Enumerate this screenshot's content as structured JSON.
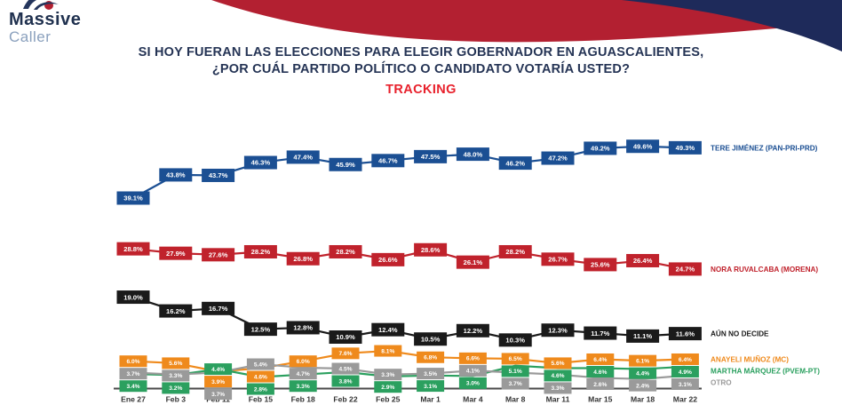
{
  "header": {
    "logo_line1": "Massive",
    "logo_line2": "Caller",
    "title_line1": "SI HOY FUERAN LAS ELECCIONES PARA ELEGIR GOBERNADOR EN AGUASCALIENTES,",
    "title_line2": "¿POR CUÁL PARTIDO POLÍTICO O CANDIDATO VOTARÍA USTED?",
    "tracking_label": "TRACKING"
  },
  "colors": {
    "swoosh_red": "#b32031",
    "swoosh_blue": "#1e2a5a",
    "title_navy": "#253455",
    "tracking_red": "#e8212c",
    "axis": "#4a4a4a"
  },
  "chart_data": {
    "type": "line",
    "title": "TRACKING",
    "xlabel": "",
    "ylabel": "",
    "ylim": [
      0,
      55
    ],
    "grid": false,
    "legend_position": "right",
    "label_format": "percent_one_decimal",
    "categories": [
      "Ene 27",
      "Feb 3",
      "Feb 11",
      "Feb 15",
      "Feb 18",
      "Feb 22",
      "Feb 25",
      "Mar 1",
      "Mar 4",
      "Mar 8",
      "Mar 11",
      "Mar 15",
      "Mar 18",
      "Mar 22"
    ],
    "series": [
      {
        "name": "TERE JIMÉNEZ (PAN-PRI-PRD)",
        "color": "#1b4f93",
        "values": [
          39.1,
          43.8,
          43.7,
          46.3,
          47.4,
          45.9,
          46.7,
          47.5,
          48.0,
          46.2,
          47.2,
          49.2,
          49.6,
          49.3
        ]
      },
      {
        "name": "NORA RUVALCABA (MORENA)",
        "color": "#c0222c",
        "values": [
          28.8,
          27.9,
          27.6,
          28.2,
          26.8,
          28.2,
          26.6,
          28.6,
          26.1,
          28.2,
          26.7,
          25.6,
          26.4,
          24.7
        ]
      },
      {
        "name": "AÚN NO DECIDE",
        "color": "#1a1a1a",
        "values": [
          19.0,
          16.2,
          16.7,
          12.5,
          12.8,
          10.9,
          12.4,
          10.5,
          12.2,
          10.3,
          12.3,
          11.7,
          11.1,
          11.6
        ]
      },
      {
        "name": "ANAYELI MUÑOZ (MC)",
        "color": "#ef8a1c",
        "values": [
          6.0,
          5.6,
          3.9,
          4.6,
          6.0,
          7.6,
          8.1,
          6.8,
          6.6,
          6.5,
          5.6,
          6.4,
          6.1,
          6.4
        ]
      },
      {
        "name": "MARTHA MÁRQUEZ (PVEM-PT)",
        "color": "#2ba05f",
        "values": [
          3.4,
          3.2,
          4.4,
          2.8,
          3.3,
          3.8,
          2.9,
          3.1,
          3.0,
          5.1,
          4.6,
          4.6,
          4.4,
          4.9
        ]
      },
      {
        "name": "OTRO",
        "color": "#9a9a9a",
        "values": [
          3.7,
          3.3,
          3.7,
          5.4,
          4.7,
          4.5,
          3.3,
          3.5,
          4.1,
          3.7,
          3.3,
          2.6,
          2.4,
          3.1
        ]
      }
    ]
  }
}
